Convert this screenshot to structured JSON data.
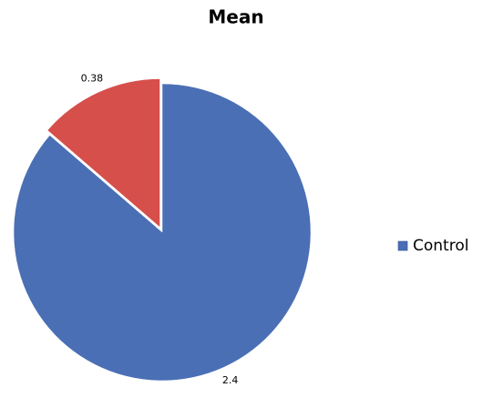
{
  "chart_data": {
    "type": "pie",
    "title": "Mean",
    "categories": [
      "Control",
      null
    ],
    "values": [
      2.4,
      0.38
    ],
    "colors": [
      "#4a6fb5",
      "#d64f4b"
    ],
    "legend": "right"
  }
}
